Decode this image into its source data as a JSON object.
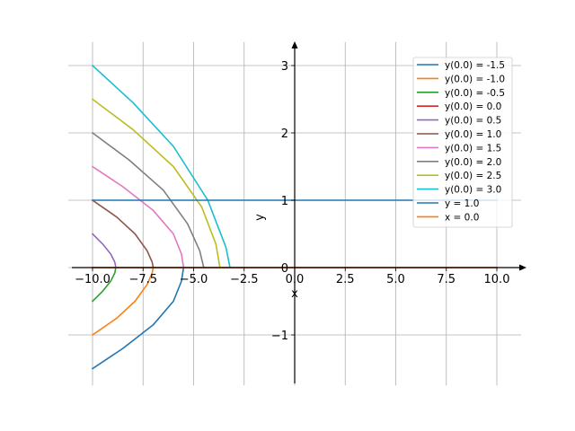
{
  "chart_data": {
    "type": "line",
    "xlabel": "x",
    "ylabel": "y",
    "xlim": [
      -11.2,
      11.2
    ],
    "ylim": [
      -1.75,
      3.35
    ],
    "grid": true,
    "legend_position": "top-right",
    "x_ticks": [
      {
        "value": -10.0,
        "label": "−10.0"
      },
      {
        "value": -7.5,
        "label": "−7.5"
      },
      {
        "value": -5.0,
        "label": "−5.0"
      },
      {
        "value": -2.5,
        "label": "−2.5"
      },
      {
        "value": 0.0,
        "label": "0.0"
      },
      {
        "value": 2.5,
        "label": "2.5"
      },
      {
        "value": 5.0,
        "label": "5.0"
      },
      {
        "value": 7.5,
        "label": "7.5"
      },
      {
        "value": 10.0,
        "label": "10.0"
      }
    ],
    "y_ticks": [
      {
        "value": -1,
        "label": "−1"
      },
      {
        "value": 0,
        "label": "0"
      },
      {
        "value": 1,
        "label": "1"
      },
      {
        "value": 2,
        "label": "2"
      },
      {
        "value": 3,
        "label": "3"
      }
    ],
    "series": [
      {
        "name": "y(0.0) = -1.5",
        "color": "#1f77b4",
        "x": [
          -10,
          -8.5,
          -7,
          -6,
          -5.6,
          -5.5
        ],
        "y": [
          -1.5,
          -1.2,
          -0.85,
          -0.5,
          -0.2,
          0
        ]
      },
      {
        "name": "y(0.0) = -1.0",
        "color": "#ff7f0e",
        "x": [
          -10,
          -8.8,
          -7.9,
          -7.3,
          -7.05,
          -7.0
        ],
        "y": [
          -1.0,
          -0.75,
          -0.5,
          -0.25,
          -0.08,
          0
        ]
      },
      {
        "name": "y(0.0) = -0.5",
        "color": "#2ca02c",
        "x": [
          -10,
          -9.5,
          -9.1,
          -8.9,
          -8.85
        ],
        "y": [
          -0.5,
          -0.35,
          -0.2,
          -0.08,
          0
        ]
      },
      {
        "name": "y(0.0) = 0.0",
        "color": "#d62728",
        "x": [
          -10,
          10
        ],
        "y": [
          0,
          0
        ]
      },
      {
        "name": "y(0.0) = 0.5",
        "color": "#9467bd",
        "x": [
          -10,
          -9.5,
          -9.1,
          -8.9,
          -8.85
        ],
        "y": [
          0.5,
          0.35,
          0.2,
          0.08,
          0
        ]
      },
      {
        "name": "y(0.0) = 1.0",
        "color": "#8c564b",
        "x": [
          -10,
          -8.8,
          -7.9,
          -7.3,
          -7.05,
          -7.0
        ],
        "y": [
          1.0,
          0.75,
          0.5,
          0.25,
          0.08,
          0
        ]
      },
      {
        "name": "y(0.0) = 1.5",
        "color": "#e377c2",
        "x": [
          -10,
          -8.5,
          -7,
          -6,
          -5.6,
          -5.5
        ],
        "y": [
          1.5,
          1.2,
          0.85,
          0.5,
          0.2,
          0
        ]
      },
      {
        "name": "y(0.0) = 2.0",
        "color": "#7f7f7f",
        "x": [
          -10,
          -8.2,
          -6.5,
          -5.3,
          -4.7,
          -4.5
        ],
        "y": [
          2.0,
          1.6,
          1.15,
          0.65,
          0.25,
          0
        ]
      },
      {
        "name": "y(0.0) = 2.5",
        "color": "#bcbd22",
        "x": [
          -10,
          -8,
          -6,
          -4.6,
          -3.9,
          -3.7
        ],
        "y": [
          2.5,
          2.05,
          1.5,
          0.9,
          0.35,
          0
        ]
      },
      {
        "name": "y(0.0) = 3.0",
        "color": "#17becf",
        "x": [
          -10,
          -8,
          -6,
          -4.3,
          -3.4,
          -3.2
        ],
        "y": [
          3.0,
          2.45,
          1.8,
          1.0,
          0.3,
          0
        ]
      },
      {
        "name": "y = 1.0",
        "color": "#1f77b4",
        "x": [
          -10,
          10
        ],
        "y": [
          1.0,
          1.0
        ]
      },
      {
        "name": "x = 0.0",
        "color": "#ff7f0e",
        "x": [
          -10,
          10
        ],
        "y": [
          0,
          0
        ]
      }
    ]
  }
}
